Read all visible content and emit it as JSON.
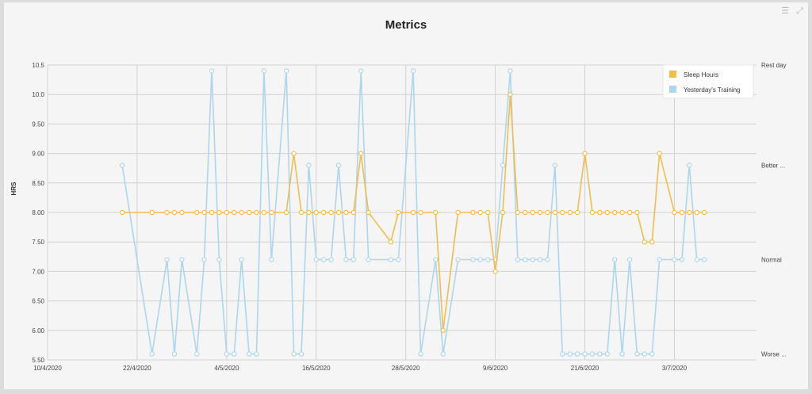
{
  "toolbar": {
    "menu_icon": "menu-icon",
    "expand_icon": "expand-icon"
  },
  "chart_data": {
    "type": "line",
    "title": "Metrics",
    "ylabel": "HRS",
    "ylim": [
      5.5,
      10.5
    ],
    "yticks": [
      "10.5",
      "10.0",
      "9.50",
      "9.00",
      "8.50",
      "8.00",
      "7.50",
      "7.00",
      "6.50",
      "6.00",
      "5.50"
    ],
    "y2ticks": [
      {
        "label": "Rest day",
        "value": 10.5
      },
      {
        "label": "Better ...",
        "value": 8.8
      },
      {
        "label": "Normal",
        "value": 7.2
      },
      {
        "label": "Worse ...",
        "value": 5.6
      }
    ],
    "xlim": [
      "2020-04-10",
      "2020-07-14"
    ],
    "xticks": [
      {
        "label": "10/4/2020",
        "date": "2020-04-10"
      },
      {
        "label": "22/4/2020",
        "date": "2020-04-22"
      },
      {
        "label": "4/5/2020",
        "date": "2020-05-04"
      },
      {
        "label": "16/5/2020",
        "date": "2020-05-16"
      },
      {
        "label": "28/5/2020",
        "date": "2020-05-28"
      },
      {
        "label": "9/6/2020",
        "date": "2020-06-09"
      },
      {
        "label": "21/6/2020",
        "date": "2020-06-21"
      },
      {
        "label": "3/7/2020",
        "date": "2020-07-03"
      }
    ],
    "grid": true,
    "legend": "top-right",
    "dates": [
      "2020-04-20",
      "2020-04-24",
      "2020-04-26",
      "2020-04-27",
      "2020-04-28",
      "2020-04-30",
      "2020-05-01",
      "2020-05-02",
      "2020-05-03",
      "2020-05-04",
      "2020-05-05",
      "2020-05-06",
      "2020-05-07",
      "2020-05-08",
      "2020-05-09",
      "2020-05-10",
      "2020-05-12",
      "2020-05-13",
      "2020-05-14",
      "2020-05-15",
      "2020-05-16",
      "2020-05-17",
      "2020-05-18",
      "2020-05-19",
      "2020-05-20",
      "2020-05-21",
      "2020-05-22",
      "2020-05-23",
      "2020-05-26",
      "2020-05-27",
      "2020-05-29",
      "2020-05-30",
      "2020-06-01",
      "2020-06-02",
      "2020-06-04",
      "2020-06-06",
      "2020-06-07",
      "2020-06-08",
      "2020-06-09",
      "2020-06-10",
      "2020-06-11",
      "2020-06-12",
      "2020-06-13",
      "2020-06-14",
      "2020-06-15",
      "2020-06-16",
      "2020-06-17",
      "2020-06-18",
      "2020-06-19",
      "2020-06-20",
      "2020-06-21",
      "2020-06-22",
      "2020-06-23",
      "2020-06-24",
      "2020-06-25",
      "2020-06-26",
      "2020-06-27",
      "2020-06-28",
      "2020-06-29",
      "2020-06-30",
      "2020-07-01",
      "2020-07-03",
      "2020-07-04",
      "2020-07-05",
      "2020-07-06",
      "2020-07-07"
    ],
    "series": [
      {
        "name": "Sleep Hours",
        "color": "#f0be4e",
        "values": [
          8,
          8,
          8,
          8,
          8,
          8,
          8,
          8,
          8,
          8,
          8,
          8,
          8,
          8,
          8,
          8,
          8,
          9,
          8,
          8,
          8,
          8,
          8,
          8,
          8,
          8,
          9,
          8,
          7.5,
          8,
          8,
          8,
          8,
          6,
          8,
          8,
          8,
          8,
          7,
          8,
          10,
          8,
          8,
          8,
          8,
          8,
          8,
          8,
          8,
          8,
          9,
          8,
          8,
          8,
          8,
          8,
          8,
          8,
          7.5,
          7.5,
          9,
          8,
          8,
          8,
          8,
          8
        ]
      },
      {
        "name": "Yesterday's Training",
        "color": "#acd6ee",
        "values": [
          8.8,
          5.6,
          7.2,
          5.6,
          7.2,
          5.6,
          7.2,
          10.4,
          7.2,
          5.6,
          5.6,
          7.2,
          5.6,
          5.6,
          10.4,
          7.2,
          10.4,
          5.6,
          5.6,
          8.8,
          7.2,
          7.2,
          7.2,
          8.8,
          7.2,
          7.2,
          10.4,
          7.2,
          7.2,
          7.2,
          10.4,
          5.6,
          7.2,
          5.6,
          7.2,
          7.2,
          7.2,
          7.2,
          7.2,
          8.8,
          10.4,
          7.2,
          7.2,
          7.2,
          7.2,
          7.2,
          8.8,
          5.6,
          5.6,
          5.6,
          5.6,
          5.6,
          5.6,
          5.6,
          7.2,
          5.6,
          7.2,
          5.6,
          5.6,
          5.6,
          7.2,
          7.2,
          7.2,
          8.8,
          7.2,
          7.2
        ]
      }
    ]
  }
}
